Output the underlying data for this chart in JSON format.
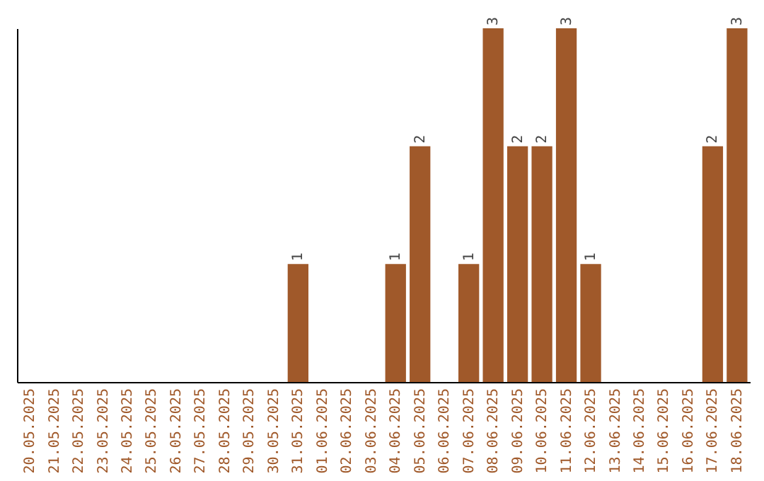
{
  "chart_data": {
    "type": "bar",
    "categories": [
      "20.05.2025",
      "21.05.2025",
      "22.05.2025",
      "23.05.2025",
      "24.05.2025",
      "25.05.2025",
      "26.05.2025",
      "27.05.2025",
      "28.05.2025",
      "29.05.2025",
      "30.05.2025",
      "31.05.2025",
      "01.06.2025",
      "02.06.2025",
      "03.06.2025",
      "04.06.2025",
      "05.06.2025",
      "06.06.2025",
      "07.06.2025",
      "08.06.2025",
      "09.06.2025",
      "10.06.2025",
      "11.06.2025",
      "12.06.2025",
      "13.06.2025",
      "14.06.2025",
      "15.06.2025",
      "16.06.2025",
      "17.06.2025",
      "18.06.2025"
    ],
    "values": [
      0,
      0,
      0,
      0,
      0,
      0,
      0,
      0,
      0,
      0,
      0,
      1,
      0,
      0,
      0,
      1,
      2,
      0,
      1,
      3,
      2,
      2,
      3,
      1,
      0,
      0,
      0,
      0,
      2,
      3
    ],
    "value_labels": [
      null,
      null,
      null,
      null,
      null,
      null,
      null,
      null,
      null,
      null,
      null,
      "1",
      null,
      null,
      null,
      "1",
      "2",
      null,
      "1",
      "3",
      "2",
      "2",
      "3",
      "1",
      null,
      null,
      null,
      null,
      "2",
      "3"
    ],
    "color": "#a0592a",
    "ylim": [
      0,
      3
    ],
    "tick_labels": "x",
    "grid": false
  }
}
